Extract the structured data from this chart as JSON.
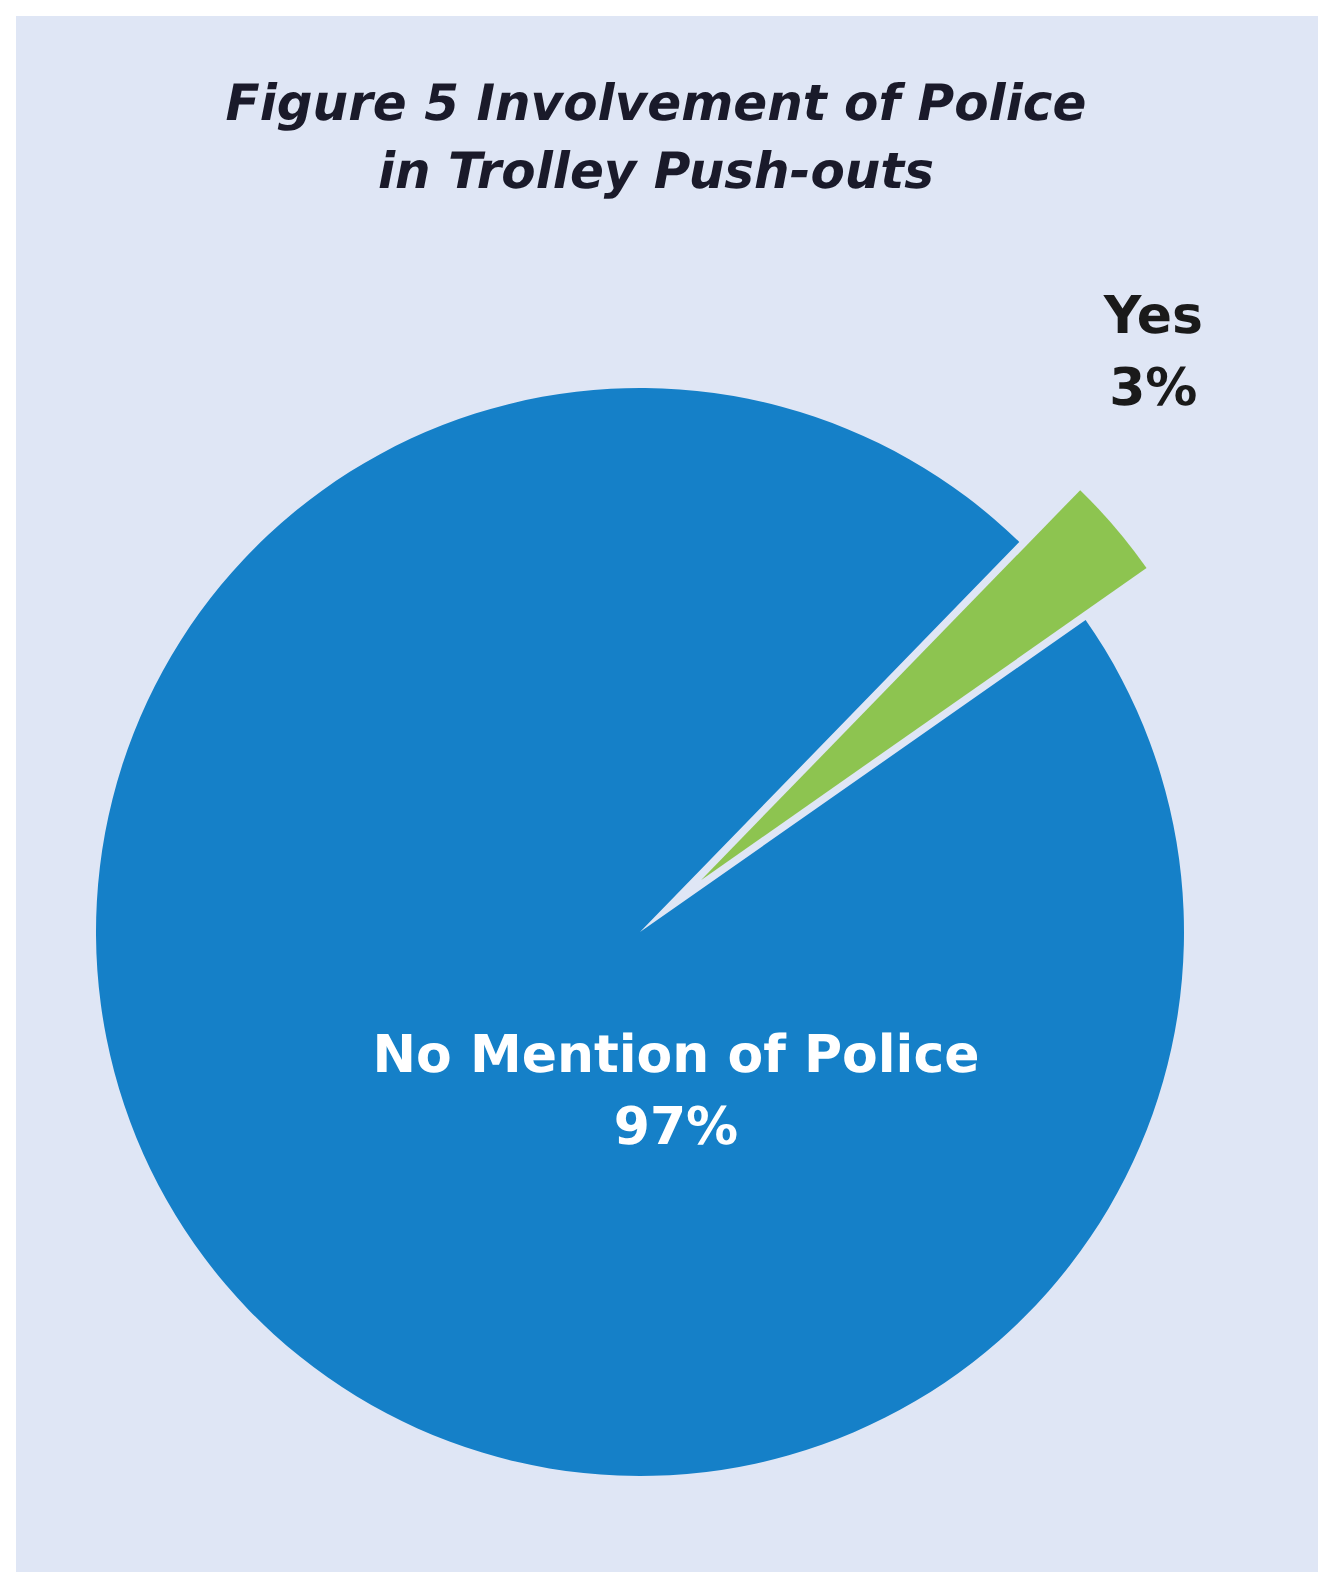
{
  "chart_data": {
    "type": "pie",
    "title": "Figure 5 Involvement of Police in Trolley Push-outs",
    "categories": [
      "No Mention of Police",
      "Yes"
    ],
    "values": [
      97,
      3
    ],
    "colors": [
      "#1580c8",
      "#8dc450"
    ],
    "value_labels": [
      "97%",
      "3%"
    ]
  }
}
